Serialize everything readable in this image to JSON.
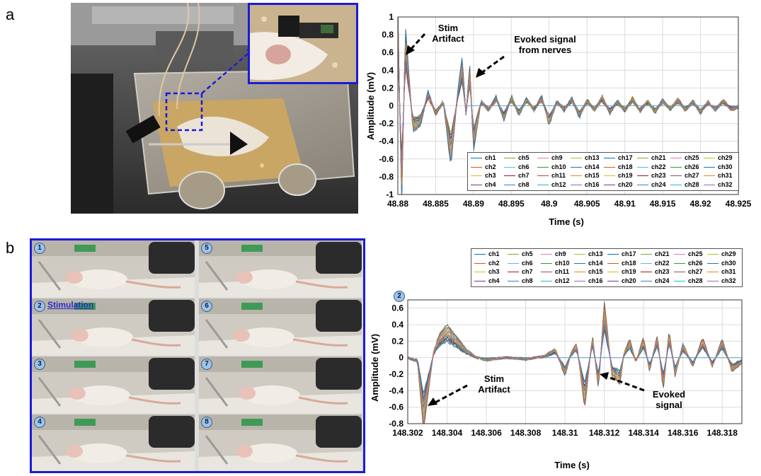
{
  "panels": {
    "a": {
      "letter": "a"
    },
    "b": {
      "letter": "b",
      "frame_numbers": [
        "1",
        "5",
        "2",
        "6",
        "3",
        "7",
        "4",
        "8"
      ],
      "stimulation_label": "Stimulation"
    }
  },
  "annotations_a": {
    "stim": "Stim\nArtifact",
    "evoked": "Evoked signal\nfrom nerves"
  },
  "annotations_b": {
    "frame_marker": "2",
    "stim": "Stim\nArtifact",
    "evoked": "Evoked\nsignal"
  },
  "legend_entries": [
    "ch1",
    "ch2",
    "ch3",
    "ch4",
    "ch5",
    "ch6",
    "ch7",
    "ch8",
    "ch9",
    "ch10",
    "ch11",
    "ch12",
    "ch13",
    "ch14",
    "ch15",
    "ch16",
    "ch17",
    "ch18",
    "ch19",
    "ch20",
    "ch21",
    "ch22",
    "ch23",
    "ch24",
    "ch25",
    "ch26",
    "ch27",
    "ch28",
    "ch29",
    "ch30",
    "ch31",
    "ch32"
  ],
  "series_colors": [
    "#0072bd",
    "#d95319",
    "#edb120",
    "#7e2f8e",
    "#77ac30",
    "#4dbeee",
    "#a2142f",
    "#3a7bd5",
    "#e377c2",
    "#2ca02c",
    "#8c564b",
    "#17becf",
    "#bcbd22",
    "#1f77b4",
    "#ff7f0e",
    "#9467bd"
  ],
  "chart_data": [
    {
      "type": "line",
      "title": "",
      "xlabel": "Time (s)",
      "ylabel": "Amplitude (mV)",
      "xlim": [
        48.88,
        48.925
      ],
      "ylim": [
        -1,
        1
      ],
      "xticks": [
        "48.88",
        "48.885",
        "48.89",
        "48.895",
        "48.9",
        "48.905",
        "48.91",
        "48.915",
        "48.92",
        "48.925"
      ],
      "yticks": [
        "1",
        "0.8",
        "0.6",
        "0.4",
        "0.2",
        "0",
        "-0.2",
        "-0.4",
        "-0.6",
        "-0.8",
        "-1"
      ],
      "grid": true,
      "legend": "bottom-right, 4 rows x 8 columns",
      "series_count": 32,
      "envelope_x": [
        48.88,
        48.8805,
        48.881,
        48.882,
        48.883,
        48.884,
        48.885,
        48.886,
        48.887,
        48.888,
        48.8885,
        48.889,
        48.8895,
        48.89,
        48.8905,
        48.891,
        48.892,
        48.893,
        48.894,
        48.895,
        48.896,
        48.897,
        48.898,
        48.899,
        48.9,
        48.901,
        48.902,
        48.903,
        48.904,
        48.905,
        48.906,
        48.907,
        48.908,
        48.909,
        48.91,
        48.911,
        48.912,
        48.913,
        48.914,
        48.915,
        48.916,
        48.917,
        48.918,
        48.919,
        48.92,
        48.921,
        48.922,
        48.923,
        48.924,
        48.925
      ],
      "envelope_y": [
        1,
        -1,
        0.8,
        -0.25,
        -0.2,
        0.15,
        -0.1,
        0.05,
        -0.6,
        0.2,
        0.48,
        -0.1,
        0.42,
        -0.45,
        -0.2,
        0.05,
        -0.05,
        0.1,
        -0.15,
        0.1,
        -0.1,
        0.08,
        -0.05,
        0.1,
        -0.2,
        0.05,
        -0.05,
        0.08,
        -0.12,
        0.06,
        -0.05,
        0.1,
        -0.08,
        0.05,
        -0.06,
        0.08,
        -0.06,
        0.05,
        -0.07,
        0.06,
        -0.04,
        0.07,
        -0.05,
        0.05,
        -0.08,
        0.04,
        -0.05,
        0.06,
        -0.04,
        -0.02
      ]
    },
    {
      "type": "line",
      "title": "",
      "xlabel": "Time (s)",
      "ylabel": "Amplitude (mV)",
      "xlim": [
        148.302,
        148.319
      ],
      "ylim": [
        -0.8,
        0.7
      ],
      "xticks": [
        "148.302",
        "148.304",
        "148.306",
        "148.308",
        "148.31",
        "148.312",
        "148.314",
        "148.316",
        "148.318"
      ],
      "yticks": [
        "0.6",
        "0.4",
        "0.2",
        "0",
        "-0.2",
        "-0.4",
        "-0.6",
        "-0.8"
      ],
      "grid": true,
      "legend": "top, 4 rows x 8 columns",
      "series_count": 32,
      "envelope_x": [
        148.302,
        148.3025,
        148.3028,
        148.303,
        148.3033,
        148.3036,
        148.304,
        148.3045,
        148.305,
        148.3055,
        148.306,
        148.307,
        148.308,
        148.309,
        148.3095,
        148.31,
        148.3103,
        148.3106,
        148.311,
        148.3114,
        148.3117,
        148.312,
        148.3124,
        148.3128,
        148.313,
        148.3133,
        148.3136,
        148.314,
        148.3143,
        148.3147,
        148.315,
        148.3153,
        148.3156,
        148.316,
        148.3165,
        148.317,
        148.3175,
        148.318,
        148.3185,
        148.319
      ],
      "envelope_y": [
        0,
        -0.05,
        -0.78,
        -0.45,
        0.05,
        0.25,
        0.35,
        0.22,
        0.08,
        0.0,
        -0.03,
        0.0,
        -0.02,
        0.02,
        0.1,
        -0.2,
        0.05,
        0.15,
        -0.55,
        0.25,
        -0.35,
        0.6,
        -0.2,
        -0.28,
        0.05,
        0.2,
        -0.05,
        0.22,
        -0.15,
        0.25,
        -0.35,
        0.3,
        -0.2,
        0.15,
        -0.1,
        0.22,
        -0.1,
        0.2,
        -0.15,
        -0.05
      ]
    }
  ]
}
